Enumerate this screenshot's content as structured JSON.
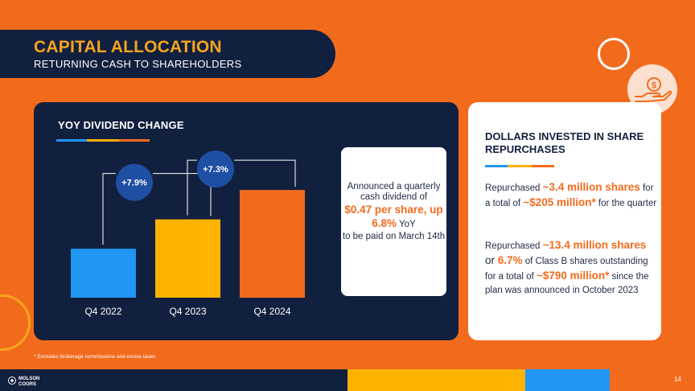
{
  "header": {
    "title": "CAPITAL ALLOCATION",
    "subtitle": "RETURNING CASH TO SHAREHOLDERS"
  },
  "icons": {
    "money_hand": "money-hand-icon"
  },
  "colors": {
    "orange": "#F26B1D",
    "navy": "#12203F",
    "yellow": "#F7A51C",
    "blue": "#2196F3",
    "bar_q4_2022": "#2196F3",
    "bar_q4_2023": "#FFB200",
    "bar_q4_2024": "#F26B1D",
    "badge": "#1E4FA3"
  },
  "dividend": {
    "title": "YOY DIVIDEND CHANGE",
    "announcement": {
      "line1": "Announced a quarterly cash dividend of",
      "highlight": "$0.47 per share, up 6.8%",
      "suffix": " YoY",
      "line2": "to be paid on March 14th"
    }
  },
  "chart_data": {
    "type": "bar",
    "categories": [
      "Q4 2022",
      "Q4 2023",
      "Q4 2024"
    ],
    "values": [
      0.38,
      0.41,
      0.44
    ],
    "changes": [
      "+7.9%",
      "+7.3%"
    ],
    "ylim": [
      0.33,
      0.45
    ],
    "title": "YOY DIVIDEND CHANGE",
    "xlabel": "",
    "ylabel": ""
  },
  "repurchases": {
    "title": "DOLLARS INVESTED IN SHARE REPURCHASES",
    "para1": {
      "pre": "Repurchased ",
      "shares": "~3.4 million shares",
      "mid": " for a total of ",
      "amount": "~$205 million*",
      "post": " for the quarter"
    },
    "para2": {
      "pre": "Repurchased ",
      "shares": "~13.4 million shares",
      "or": " or ",
      "pct": "6.7%",
      "mid": " of Class B shares outstanding for a total of ",
      "amount": "~$790 million*",
      "post": " since the plan was announced in October 2023"
    }
  },
  "footnote": "* Excludes brokerage commissions and excise taxes",
  "footer": {
    "logo_line1": "MOLSON",
    "logo_line2": "COORS",
    "page_number": "14"
  }
}
